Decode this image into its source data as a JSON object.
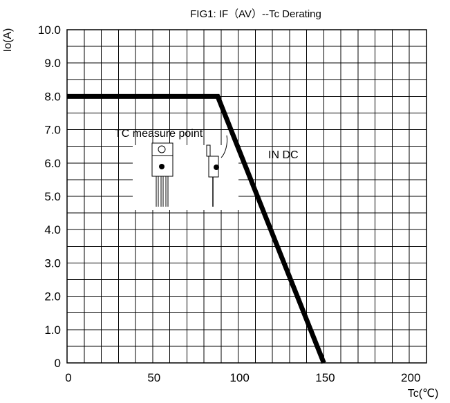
{
  "chart_data": {
    "type": "line",
    "title": "FIG1: IF（AV）--Tc  Derating",
    "xlabel": "Tc(℃)",
    "ylabel": "Io(A)",
    "xlim": [
      0,
      210
    ],
    "ylim": [
      0,
      10
    ],
    "x_ticks": [
      "0",
      "50",
      "100",
      "150",
      "200"
    ],
    "y_ticks": [
      "0",
      "1.0",
      "2.0",
      "3.0",
      "4.0",
      "5.0",
      "6.0",
      "7.0",
      "8.0",
      "9.0",
      "10.0"
    ],
    "grid": true,
    "series": [
      {
        "name": "IN DC",
        "x": [
          0,
          88,
          150
        ],
        "y": [
          8.0,
          8.0,
          0
        ]
      }
    ],
    "annotations": [
      "TC measure point",
      "IN DC"
    ]
  }
}
